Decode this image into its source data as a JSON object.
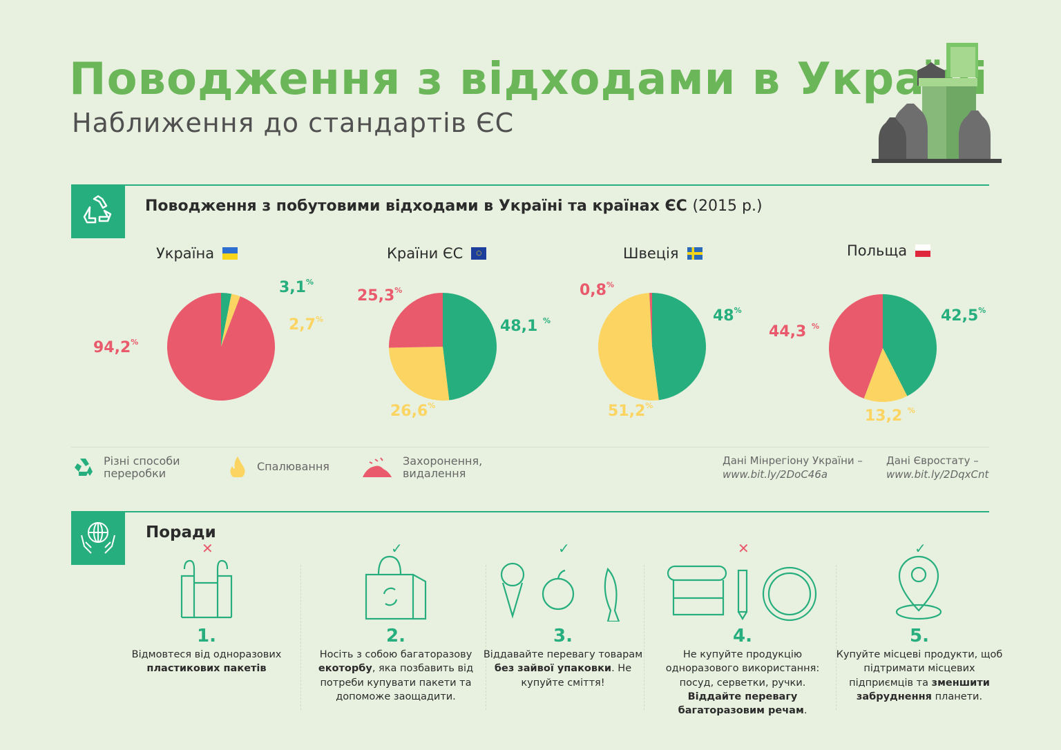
{
  "header": {
    "title": "Поводження з відходами в Україні",
    "subtitle": "Наближення до стандартів ЄС"
  },
  "section1": {
    "title": "Поводження з побутовими відходами в Україні та країнах ЄС",
    "year": "(2015 р.)",
    "icon": "recycle-icon"
  },
  "colors": {
    "recycling": "#27ae7e",
    "incineration": "#fbd462",
    "landfill": "#e95a6c",
    "accent": "#6cb65a",
    "background": "#e8f1df"
  },
  "chart_data": [
    {
      "type": "pie",
      "title": "Україна",
      "flag": "ua-flag",
      "categories": [
        "Різні способи переробки",
        "Спалювання",
        "Захоронення, видалення"
      ],
      "values": [
        3.1,
        2.7,
        94.2
      ],
      "labels": [
        "3,1",
        "2,7",
        "94,2"
      ]
    },
    {
      "type": "pie",
      "title": "Країни ЄС",
      "flag": "eu-flag",
      "categories": [
        "Різні способи переробки",
        "Спалювання",
        "Захоронення, видалення"
      ],
      "values": [
        48.1,
        26.6,
        25.3
      ],
      "labels": [
        "48,1",
        "26,6",
        "25,3"
      ]
    },
    {
      "type": "pie",
      "title": "Швеція",
      "flag": "se-flag",
      "categories": [
        "Різні способи переробки",
        "Спалювання",
        "Захоронення, видалення"
      ],
      "values": [
        48,
        51.2,
        0.8
      ],
      "labels": [
        "48",
        "51,2",
        "0,8"
      ]
    },
    {
      "type": "pie",
      "title": "Польща",
      "flag": "pl-flag",
      "categories": [
        "Різні способи переробки",
        "Спалювання",
        "Захоронення, видалення"
      ],
      "values": [
        42.5,
        13.2,
        44.3
      ],
      "labels": [
        "42,5",
        "13,2",
        "44,3"
      ]
    }
  ],
  "percent_sign": "%",
  "legend": [
    {
      "label_line1": "Різні способи",
      "label_line2": "переробки",
      "icon": "recycle-icon",
      "color": "#27ae7e"
    },
    {
      "label_line1": "Спалювання",
      "label_line2": "",
      "icon": "fire-icon",
      "color": "#fbd462"
    },
    {
      "label_line1": "Захоронення,",
      "label_line2": "видалення",
      "icon": "landfill-icon",
      "color": "#e95a6c"
    }
  ],
  "sources": [
    {
      "label": "Дані Мінрегіону України –",
      "link": "www.bit.ly/2DoC46a"
    },
    {
      "label": "Дані Євростату –",
      "link": "www.bit.ly/2DqxCnt"
    }
  ],
  "section2": {
    "title": "Поради",
    "icon": "globe-hands-icon"
  },
  "tips": [
    {
      "number": "1.",
      "mark": "✕",
      "icon": "plastic-bag-icon",
      "parts": [
        {
          "t": "Відмовтеся від одноразових ",
          "b": false
        },
        {
          "t": "пластикових пакетів",
          "b": true
        }
      ]
    },
    {
      "number": "2.",
      "mark": "✓",
      "icon": "eco-bag-icon",
      "parts": [
        {
          "t": "Носіть з собою багаторазову ",
          "b": false
        },
        {
          "t": "екоторбу",
          "b": true
        },
        {
          "t": ", яка позбавить від потреби купувати пакети та допоможе заощадити.",
          "b": false
        }
      ]
    },
    {
      "number": "3.",
      "mark": "✓",
      "icon": "unpackaged-food-icon",
      "parts": [
        {
          "t": "Віддавайте перевагу товарам ",
          "b": false
        },
        {
          "t": "без зайвої упаковки",
          "b": true
        },
        {
          "t": ". Не купуйте сміття!",
          "b": false
        }
      ]
    },
    {
      "number": "4.",
      "mark": "✕",
      "icon": "disposable-items-icon",
      "parts": [
        {
          "t": "Не купуйте продукцію одноразового використання: посуд, серветки, ручки. ",
          "b": false
        },
        {
          "t": "Віддайте перевагу багаторазовим речам",
          "b": true
        },
        {
          "t": ".",
          "b": false
        }
      ]
    },
    {
      "number": "5.",
      "mark": "✓",
      "icon": "location-pin-icon",
      "parts": [
        {
          "t": "Купуйте місцеві продукти, щоб підтримати місцевих підприємців та ",
          "b": false
        },
        {
          "t": "зменшити забруднення",
          "b": true
        },
        {
          "t": " планети.",
          "b": false
        }
      ]
    }
  ]
}
